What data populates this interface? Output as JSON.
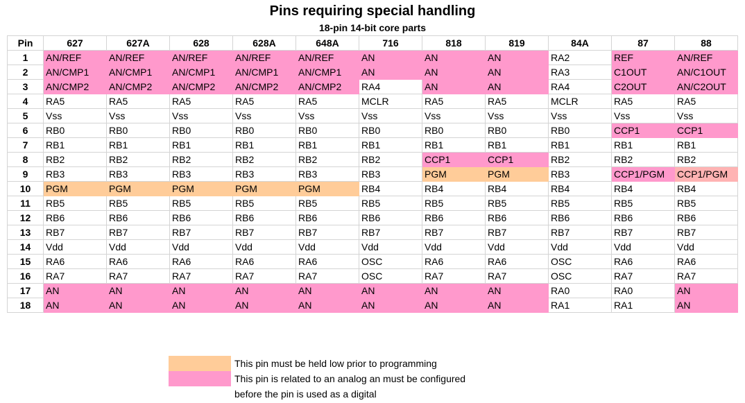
{
  "title": "Pins requiring special handling",
  "subtitle": "18-pin 14-bit core parts",
  "colors": {
    "analog": "#ff99cc",
    "program": "#ffcc99",
    "both": "#ffb3b3"
  },
  "table": {
    "headers": [
      "Pin",
      "627",
      "627A",
      "628",
      "628A",
      "648A",
      "716",
      "818",
      "819",
      "84A",
      "87",
      "88"
    ],
    "rows": [
      {
        "pin": "1",
        "cells": [
          [
            "AN/REF",
            "a"
          ],
          [
            "AN/REF",
            "a"
          ],
          [
            "AN/REF",
            "a"
          ],
          [
            "AN/REF",
            "a"
          ],
          [
            "AN/REF",
            "a"
          ],
          [
            "AN",
            "a"
          ],
          [
            "AN",
            "a"
          ],
          [
            "AN",
            "a"
          ],
          [
            "RA2",
            ""
          ],
          [
            "REF",
            "a"
          ],
          [
            "AN/REF",
            "a"
          ]
        ]
      },
      {
        "pin": "2",
        "cells": [
          [
            "AN/CMP1",
            "a"
          ],
          [
            "AN/CMP1",
            "a"
          ],
          [
            "AN/CMP1",
            "a"
          ],
          [
            "AN/CMP1",
            "a"
          ],
          [
            "AN/CMP1",
            "a"
          ],
          [
            "AN",
            "a"
          ],
          [
            "AN",
            "a"
          ],
          [
            "AN",
            "a"
          ],
          [
            "RA3",
            ""
          ],
          [
            "C1OUT",
            "a"
          ],
          [
            "AN/C1OUT",
            "a"
          ]
        ]
      },
      {
        "pin": "3",
        "cells": [
          [
            "AN/CMP2",
            "a"
          ],
          [
            "AN/CMP2",
            "a"
          ],
          [
            "AN/CMP2",
            "a"
          ],
          [
            "AN/CMP2",
            "a"
          ],
          [
            "AN/CMP2",
            "a"
          ],
          [
            "RA4",
            ""
          ],
          [
            "AN",
            "a"
          ],
          [
            "AN",
            "a"
          ],
          [
            "RA4",
            ""
          ],
          [
            "C2OUT",
            "a"
          ],
          [
            "AN/C2OUT",
            "a"
          ]
        ]
      },
      {
        "pin": "4",
        "cells": [
          [
            "RA5",
            ""
          ],
          [
            "RA5",
            ""
          ],
          [
            "RA5",
            ""
          ],
          [
            "RA5",
            ""
          ],
          [
            "RA5",
            ""
          ],
          [
            "MCLR",
            ""
          ],
          [
            "RA5",
            ""
          ],
          [
            "RA5",
            ""
          ],
          [
            "MCLR",
            ""
          ],
          [
            "RA5",
            ""
          ],
          [
            "RA5",
            ""
          ]
        ]
      },
      {
        "pin": "5",
        "cells": [
          [
            "Vss",
            ""
          ],
          [
            "Vss",
            ""
          ],
          [
            "Vss",
            ""
          ],
          [
            "Vss",
            ""
          ],
          [
            "Vss",
            ""
          ],
          [
            "Vss",
            ""
          ],
          [
            "Vss",
            ""
          ],
          [
            "Vss",
            ""
          ],
          [
            "Vss",
            ""
          ],
          [
            "Vss",
            ""
          ],
          [
            "Vss",
            ""
          ]
        ]
      },
      {
        "pin": "6",
        "cells": [
          [
            "RB0",
            ""
          ],
          [
            "RB0",
            ""
          ],
          [
            "RB0",
            ""
          ],
          [
            "RB0",
            ""
          ],
          [
            "RB0",
            ""
          ],
          [
            "RB0",
            ""
          ],
          [
            "RB0",
            ""
          ],
          [
            "RB0",
            ""
          ],
          [
            "RB0",
            ""
          ],
          [
            "CCP1",
            "a"
          ],
          [
            "CCP1",
            "a"
          ]
        ]
      },
      {
        "pin": "7",
        "cells": [
          [
            "RB1",
            ""
          ],
          [
            "RB1",
            ""
          ],
          [
            "RB1",
            ""
          ],
          [
            "RB1",
            ""
          ],
          [
            "RB1",
            ""
          ],
          [
            "RB1",
            ""
          ],
          [
            "RB1",
            ""
          ],
          [
            "RB1",
            ""
          ],
          [
            "RB1",
            ""
          ],
          [
            "RB1",
            ""
          ],
          [
            "RB1",
            ""
          ]
        ]
      },
      {
        "pin": "8",
        "cells": [
          [
            "RB2",
            ""
          ],
          [
            "RB2",
            ""
          ],
          [
            "RB2",
            ""
          ],
          [
            "RB2",
            ""
          ],
          [
            "RB2",
            ""
          ],
          [
            "RB2",
            ""
          ],
          [
            "CCP1",
            "a"
          ],
          [
            "CCP1",
            "a"
          ],
          [
            "RB2",
            ""
          ],
          [
            "RB2",
            ""
          ],
          [
            "RB2",
            ""
          ]
        ]
      },
      {
        "pin": "9",
        "cells": [
          [
            "RB3",
            ""
          ],
          [
            "RB3",
            ""
          ],
          [
            "RB3",
            ""
          ],
          [
            "RB3",
            ""
          ],
          [
            "RB3",
            ""
          ],
          [
            "RB3",
            ""
          ],
          [
            "PGM",
            "p"
          ],
          [
            "PGM",
            "p"
          ],
          [
            "RB3",
            ""
          ],
          [
            "CCP1/PGM",
            "a"
          ],
          [
            "CCP1/PGM",
            "b"
          ]
        ]
      },
      {
        "pin": "10",
        "cells": [
          [
            "PGM",
            "p"
          ],
          [
            "PGM",
            "p"
          ],
          [
            "PGM",
            "p"
          ],
          [
            "PGM",
            "p"
          ],
          [
            "PGM",
            "p"
          ],
          [
            "RB4",
            ""
          ],
          [
            "RB4",
            ""
          ],
          [
            "RB4",
            ""
          ],
          [
            "RB4",
            ""
          ],
          [
            "RB4",
            ""
          ],
          [
            "RB4",
            ""
          ]
        ]
      },
      {
        "pin": "11",
        "cells": [
          [
            "RB5",
            ""
          ],
          [
            "RB5",
            ""
          ],
          [
            "RB5",
            ""
          ],
          [
            "RB5",
            ""
          ],
          [
            "RB5",
            ""
          ],
          [
            "RB5",
            ""
          ],
          [
            "RB5",
            ""
          ],
          [
            "RB5",
            ""
          ],
          [
            "RB5",
            ""
          ],
          [
            "RB5",
            ""
          ],
          [
            "RB5",
            ""
          ]
        ]
      },
      {
        "pin": "12",
        "cells": [
          [
            "RB6",
            ""
          ],
          [
            "RB6",
            ""
          ],
          [
            "RB6",
            ""
          ],
          [
            "RB6",
            ""
          ],
          [
            "RB6",
            ""
          ],
          [
            "RB6",
            ""
          ],
          [
            "RB6",
            ""
          ],
          [
            "RB6",
            ""
          ],
          [
            "RB6",
            ""
          ],
          [
            "RB6",
            ""
          ],
          [
            "RB6",
            ""
          ]
        ]
      },
      {
        "pin": "13",
        "cells": [
          [
            "RB7",
            ""
          ],
          [
            "RB7",
            ""
          ],
          [
            "RB7",
            ""
          ],
          [
            "RB7",
            ""
          ],
          [
            "RB7",
            ""
          ],
          [
            "RB7",
            ""
          ],
          [
            "RB7",
            ""
          ],
          [
            "RB7",
            ""
          ],
          [
            "RB7",
            ""
          ],
          [
            "RB7",
            ""
          ],
          [
            "RB7",
            ""
          ]
        ]
      },
      {
        "pin": "14",
        "cells": [
          [
            "Vdd",
            ""
          ],
          [
            "Vdd",
            ""
          ],
          [
            "Vdd",
            ""
          ],
          [
            "Vdd",
            ""
          ],
          [
            "Vdd",
            ""
          ],
          [
            "Vdd",
            ""
          ],
          [
            "Vdd",
            ""
          ],
          [
            "Vdd",
            ""
          ],
          [
            "Vdd",
            ""
          ],
          [
            "Vdd",
            ""
          ],
          [
            "Vdd",
            ""
          ]
        ]
      },
      {
        "pin": "15",
        "cells": [
          [
            "RA6",
            ""
          ],
          [
            "RA6",
            ""
          ],
          [
            "RA6",
            ""
          ],
          [
            "RA6",
            ""
          ],
          [
            "RA6",
            ""
          ],
          [
            "OSC",
            ""
          ],
          [
            "RA6",
            ""
          ],
          [
            "RA6",
            ""
          ],
          [
            "OSC",
            ""
          ],
          [
            "RA6",
            ""
          ],
          [
            "RA6",
            ""
          ]
        ]
      },
      {
        "pin": "16",
        "cells": [
          [
            "RA7",
            ""
          ],
          [
            "RA7",
            ""
          ],
          [
            "RA7",
            ""
          ],
          [
            "RA7",
            ""
          ],
          [
            "RA7",
            ""
          ],
          [
            "OSC",
            ""
          ],
          [
            "RA7",
            ""
          ],
          [
            "RA7",
            ""
          ],
          [
            "OSC",
            ""
          ],
          [
            "RA7",
            ""
          ],
          [
            "RA7",
            ""
          ]
        ]
      },
      {
        "pin": "17",
        "cells": [
          [
            "AN",
            "a"
          ],
          [
            "AN",
            "a"
          ],
          [
            "AN",
            "a"
          ],
          [
            "AN",
            "a"
          ],
          [
            "AN",
            "a"
          ],
          [
            "AN",
            "a"
          ],
          [
            "AN",
            "a"
          ],
          [
            "AN",
            "a"
          ],
          [
            "RA0",
            ""
          ],
          [
            "RA0",
            ""
          ],
          [
            "AN",
            "a"
          ]
        ]
      },
      {
        "pin": "18",
        "cells": [
          [
            "AN",
            "a"
          ],
          [
            "AN",
            "a"
          ],
          [
            "AN",
            "a"
          ],
          [
            "AN",
            "a"
          ],
          [
            "AN",
            "a"
          ],
          [
            "AN",
            "a"
          ],
          [
            "AN",
            "a"
          ],
          [
            "AN",
            "a"
          ],
          [
            "RA1",
            ""
          ],
          [
            "RA1",
            ""
          ],
          [
            "AN",
            "a"
          ]
        ]
      }
    ]
  },
  "legend": {
    "program_text": "This pin must be held low prior to programming",
    "analog_text_line1": "This pin is related to an analog an must be configured",
    "analog_text_line2": "before the pin is used as a digital"
  }
}
